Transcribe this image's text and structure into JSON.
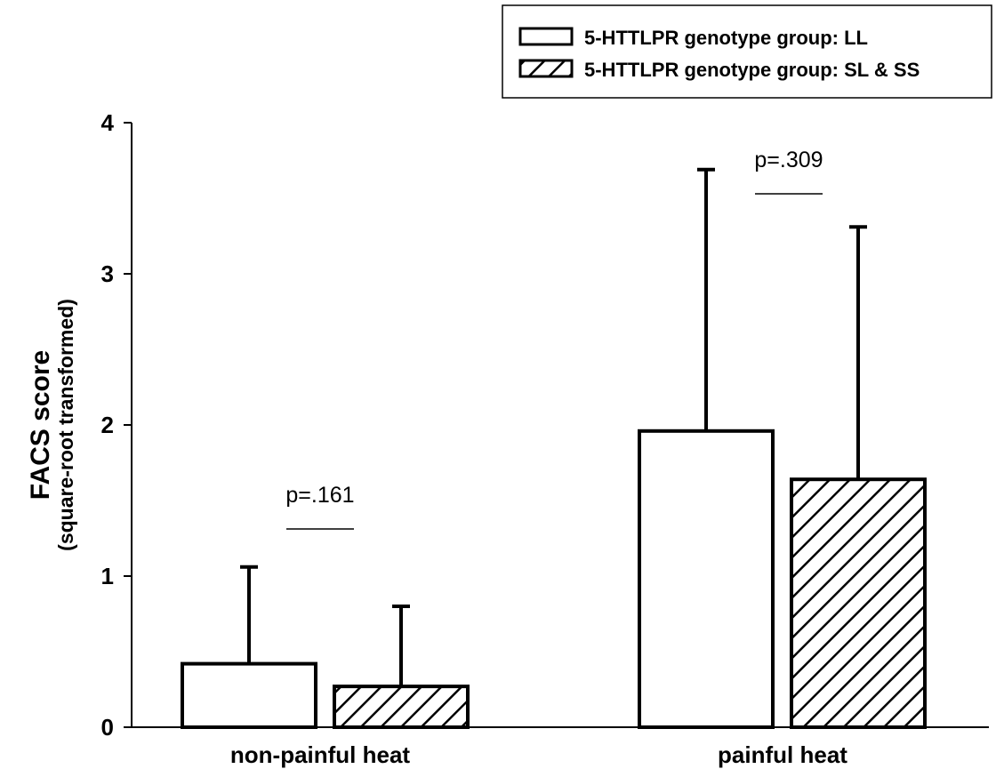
{
  "chart_data": {
    "type": "bar",
    "categories": [
      "non-painful heat",
      "painful heat"
    ],
    "series": [
      {
        "name": "5-HTTLPR genotype group: LL",
        "fill": "none",
        "values": [
          0.42,
          1.96
        ],
        "error_upper": [
          1.06,
          3.69
        ]
      },
      {
        "name": "5-HTTLPR genotype group: SL & SS",
        "fill": "hatch",
        "values": [
          0.27,
          1.64
        ],
        "error_upper": [
          0.8,
          3.31
        ]
      }
    ],
    "ylabel": "FACS score",
    "ylabel_sub": "(square-root transformed)",
    "ylim": [
      0,
      4
    ],
    "yticks": [
      "0",
      "1",
      "2",
      "3",
      "4"
    ],
    "annotations": [
      "p=.161",
      "p=.309"
    ],
    "legend_position": "top-right",
    "grid": false
  }
}
